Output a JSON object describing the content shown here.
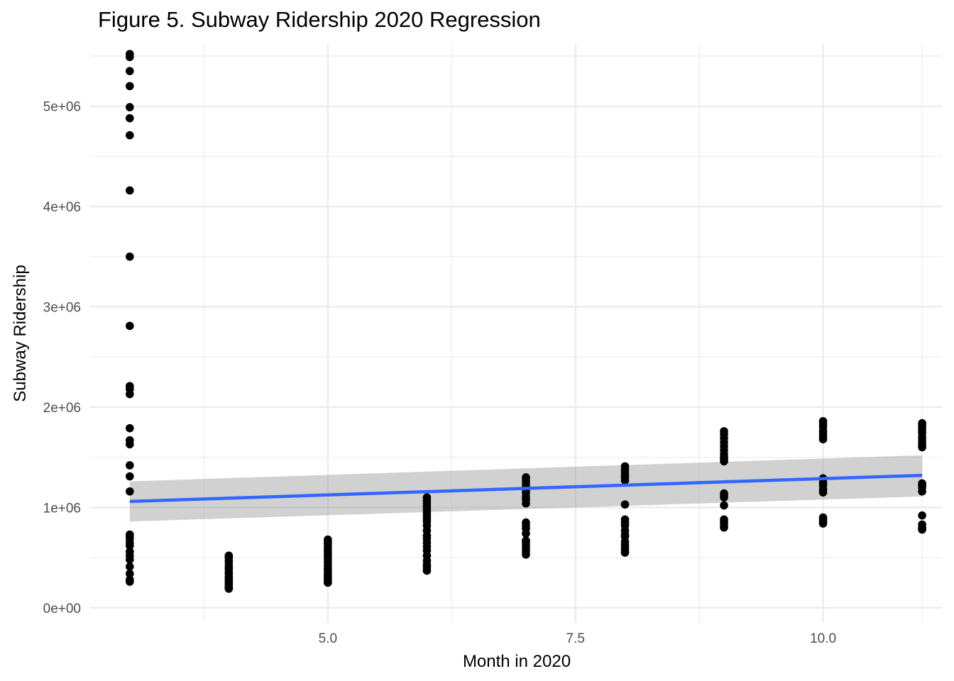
{
  "chart_data": {
    "type": "scatter",
    "title": "Figure 5. Subway Ridership 2020 Regression",
    "xlabel": "Month in 2020",
    "ylabel": "Subway Ridership",
    "xlim": [
      2.6,
      11.2
    ],
    "ylim": [
      -150000,
      5620000
    ],
    "x_ticks": [
      5.0,
      7.5,
      10.0
    ],
    "x_tick_labels": [
      "5.0",
      "7.5",
      "10.0"
    ],
    "x_minor_ticks": [
      3.75,
      6.25,
      8.75,
      11.0
    ],
    "y_ticks": [
      0,
      1000000,
      2000000,
      3000000,
      4000000,
      5000000
    ],
    "y_tick_labels": [
      "0e+00",
      "1e+06",
      "2e+06",
      "3e+06",
      "4e+06",
      "5e+06"
    ],
    "y_minor_ticks": [
      500000,
      1500000,
      2500000,
      3500000,
      4500000,
      5500000
    ],
    "grid": true,
    "point_color": "#000000",
    "series": [
      {
        "x": [
          3,
          3,
          3,
          3,
          3,
          3,
          3,
          3,
          3,
          3,
          3,
          3,
          3,
          3,
          3,
          3,
          3,
          3,
          3,
          3,
          3,
          3,
          3,
          3,
          3,
          3,
          3,
          3,
          3,
          3,
          3,
          4,
          4,
          4,
          4,
          4,
          4,
          4,
          4,
          4,
          4,
          4,
          4,
          4,
          4,
          4,
          4,
          5,
          5,
          5,
          5,
          5,
          5,
          5,
          5,
          5,
          5,
          5,
          5,
          5,
          5,
          5,
          5,
          5,
          5,
          5,
          5,
          6,
          6,
          6,
          6,
          6,
          6,
          6,
          6,
          6,
          6,
          6,
          6,
          6,
          6,
          6,
          6,
          6,
          6,
          6,
          6,
          6,
          6,
          7,
          7,
          7,
          7,
          7,
          7,
          7,
          7,
          7,
          7,
          7,
          7,
          7,
          7,
          7,
          7,
          7,
          7,
          7,
          8,
          8,
          8,
          8,
          8,
          8,
          8,
          8,
          8,
          8,
          8,
          8,
          8,
          8,
          8,
          8,
          8,
          8,
          9,
          9,
          9,
          9,
          9,
          9,
          9,
          9,
          9,
          9,
          9,
          9,
          9,
          9,
          9,
          9,
          9,
          9,
          9,
          10,
          10,
          10,
          10,
          10,
          10,
          10,
          10,
          10,
          10,
          10,
          10,
          10,
          10,
          10,
          10,
          11,
          11,
          11,
          11,
          11,
          11,
          11,
          11,
          11,
          11,
          11,
          11,
          11,
          11,
          11,
          11,
          11,
          11,
          11
        ],
        "y": [
          5520000,
          5490000,
          5350000,
          5200000,
          4990000,
          4880000,
          4710000,
          4160000,
          3500000,
          2810000,
          2210000,
          2180000,
          2130000,
          1790000,
          1670000,
          1630000,
          1420000,
          1310000,
          1160000,
          730000,
          710000,
          690000,
          650000,
          620000,
          560000,
          520000,
          480000,
          410000,
          340000,
          280000,
          260000,
          520000,
          500000,
          470000,
          440000,
          410000,
          390000,
          360000,
          340000,
          310000,
          290000,
          270000,
          250000,
          230000,
          210000,
          200000,
          190000,
          680000,
          660000,
          640000,
          610000,
          580000,
          560000,
          530000,
          510000,
          480000,
          450000,
          420000,
          390000,
          370000,
          340000,
          320000,
          300000,
          290000,
          270000,
          260000,
          250000,
          1100000,
          1070000,
          1040000,
          1010000,
          980000,
          950000,
          920000,
          890000,
          860000,
          820000,
          770000,
          720000,
          690000,
          650000,
          610000,
          570000,
          520000,
          470000,
          430000,
          410000,
          380000,
          370000,
          1300000,
          1270000,
          1240000,
          1210000,
          1180000,
          1150000,
          1110000,
          1080000,
          1040000,
          850000,
          820000,
          790000,
          740000,
          670000,
          650000,
          620000,
          590000,
          560000,
          530000,
          1410000,
          1380000,
          1350000,
          1320000,
          1300000,
          1270000,
          1030000,
          880000,
          850000,
          820000,
          770000,
          730000,
          710000,
          660000,
          630000,
          600000,
          580000,
          550000,
          1760000,
          1730000,
          1690000,
          1650000,
          1610000,
          1570000,
          1530000,
          1500000,
          1480000,
          1460000,
          1140000,
          1120000,
          1100000,
          1020000,
          880000,
          860000,
          840000,
          810000,
          800000,
          1860000,
          1830000,
          1800000,
          1760000,
          1730000,
          1700000,
          1680000,
          1290000,
          1250000,
          1220000,
          1180000,
          1150000,
          900000,
          880000,
          860000,
          840000,
          1840000,
          1820000,
          1800000,
          1770000,
          1740000,
          1700000,
          1670000,
          1640000,
          1610000,
          1600000,
          1240000,
          1220000,
          1200000,
          1160000,
          920000,
          830000,
          800000,
          790000,
          780000
        ]
      }
    ],
    "regression": {
      "color": "#3366ff",
      "band_color": "#999999",
      "x": [
        3,
        11
      ],
      "fit": [
        1060000,
        1320000
      ],
      "lower": [
        860000,
        1110000
      ],
      "upper": [
        1260000,
        1520000
      ]
    }
  }
}
